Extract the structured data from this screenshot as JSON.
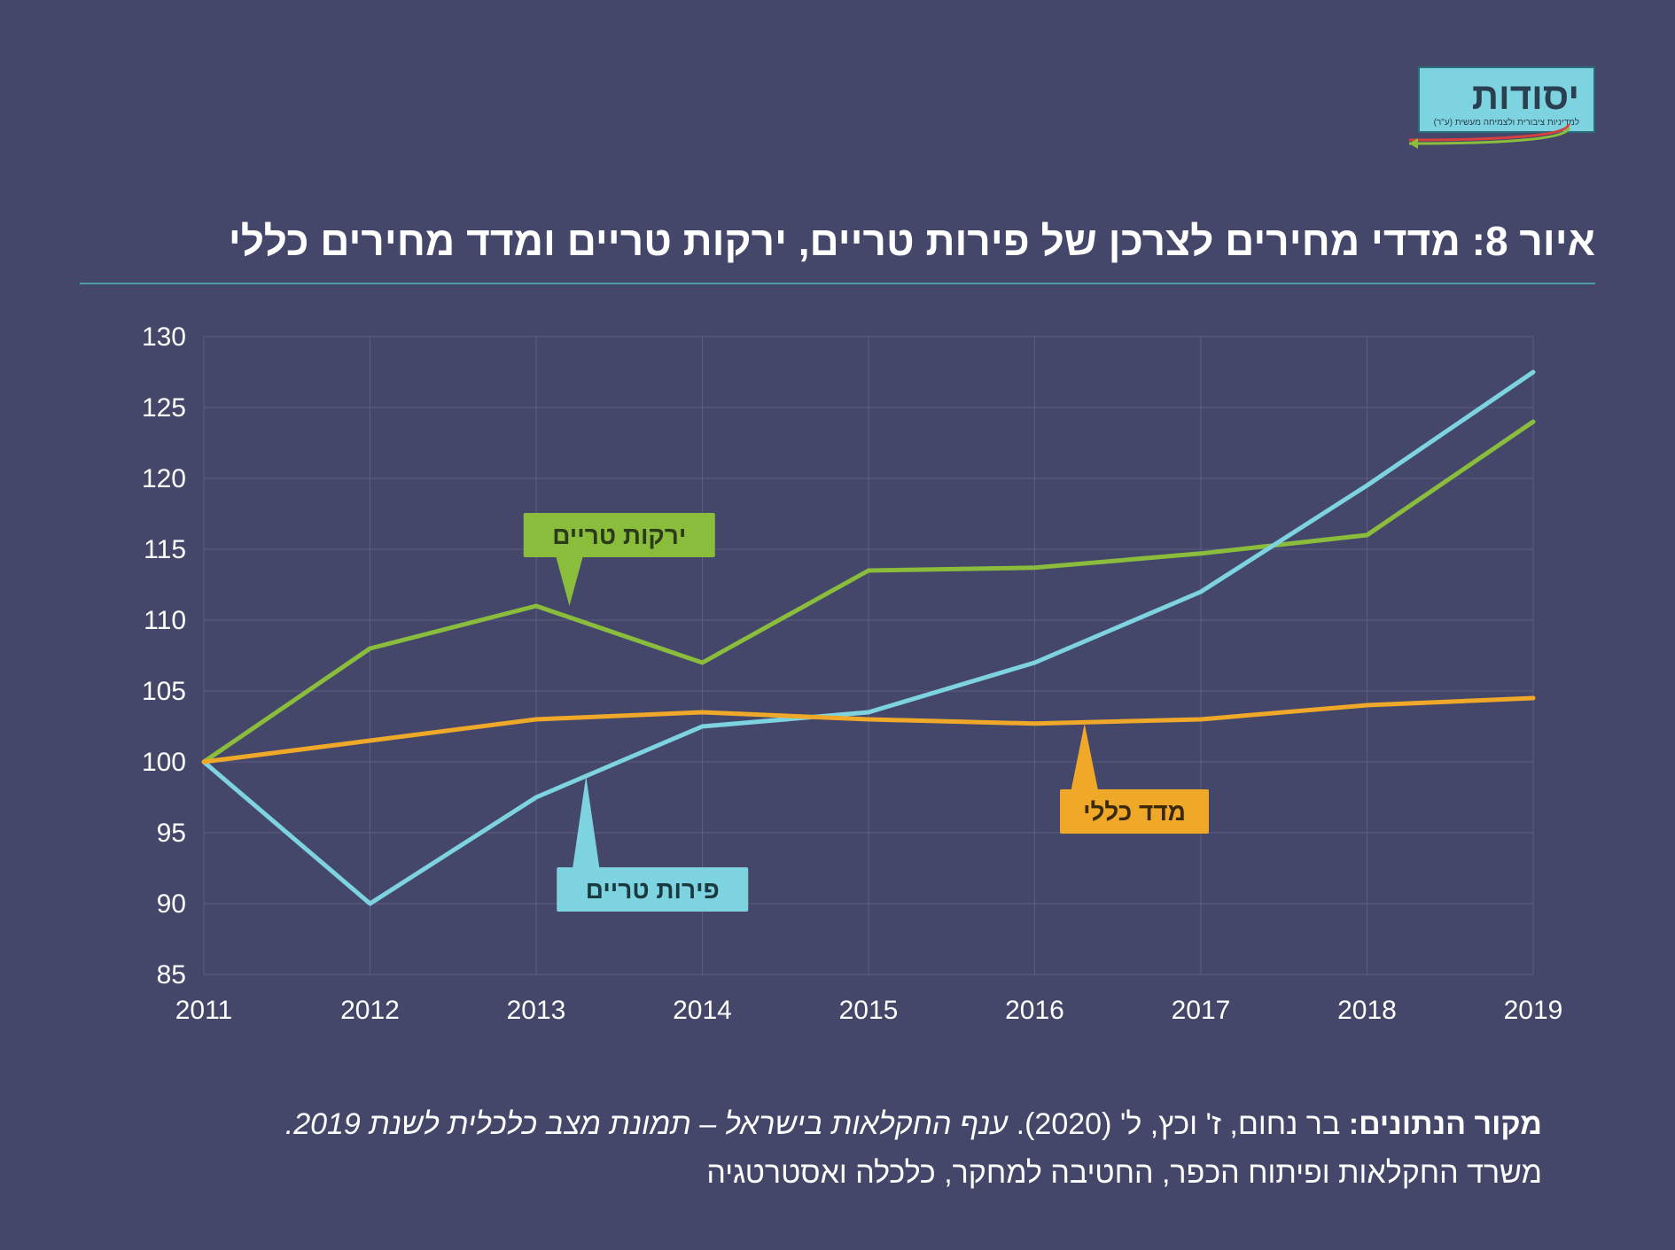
{
  "logo": {
    "name": "יסודות",
    "subtitle": "למדיניות ציבורית ולצמיחה מעשית (ע\"ר)"
  },
  "title": "איור 8: מדדי מחירים לצרכן של פירות טריים, ירקות טריים ומדד מחירים כללי",
  "chart": {
    "type": "line",
    "background_color": "#44476a",
    "grid_color": "#5a5d80",
    "axis_color": "#8a8daa",
    "tick_label_color": "#ffffff",
    "tick_fontsize": 30,
    "xlim": [
      2011,
      2019
    ],
    "ylim": [
      85,
      130
    ],
    "ytick_step": 5,
    "yticks": [
      85,
      90,
      95,
      100,
      105,
      110,
      115,
      120,
      125,
      130
    ],
    "xticks": [
      2011,
      2012,
      2013,
      2014,
      2015,
      2016,
      2017,
      2018,
      2019
    ],
    "line_width": 5,
    "series": [
      {
        "name": "vegetables",
        "label": "ירקות טריים",
        "color": "#8bbd3c",
        "label_bg": "#8bbd3c",
        "label_text_color": "#2a3a1a",
        "values": [
          100,
          108,
          111,
          107,
          113.5,
          113.7,
          114.7,
          116,
          124
        ]
      },
      {
        "name": "fruits",
        "label": "פירות טריים",
        "color": "#7dd3e0",
        "label_bg": "#7dd3e0",
        "label_text_color": "#1a3a40",
        "values": [
          100,
          90,
          97.5,
          102.5,
          103.5,
          107,
          112,
          119.5,
          127.5
        ]
      },
      {
        "name": "general",
        "label": "מדד כללי",
        "color": "#f0a828",
        "label_bg": "#f0a828",
        "label_text_color": "#3a2a0a",
        "values": [
          100,
          101.5,
          103,
          103.5,
          103,
          102.7,
          103,
          104,
          104.5
        ]
      }
    ],
    "series_callouts": {
      "vegetables": {
        "x": 2013.5,
        "y": 116,
        "pointer_to_x": 2013.2,
        "pointer_to_y": 111
      },
      "fruits": {
        "x": 2013.7,
        "y": 91,
        "pointer_to_x": 2013.3,
        "pointer_to_y": 99
      },
      "general": {
        "x": 2016.6,
        "y": 96.5,
        "pointer_to_x": 2016.3,
        "pointer_to_y": 102.7
      }
    }
  },
  "footnote": {
    "label": "מקור הנתונים:",
    "line1_plain": " בר נחום, ז' וכץ, ל' (2020). ",
    "line1_italic": "ענף החקלאות בישראל – תמונת מצב כלכלית לשנת 2019.",
    "line2": "משרד החקלאות ופיתוח הכפר, החטיבה למחקר, כלכלה ואסטרטגיה"
  },
  "colors": {
    "background": "#44476a",
    "title_underline": "#4a9aa8",
    "text": "#ffffff"
  }
}
